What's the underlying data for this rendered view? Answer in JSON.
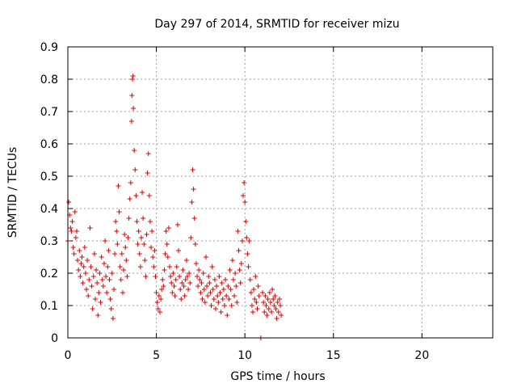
{
  "chart_data": {
    "type": "scatter",
    "title": "Day 297 of 2014, SRMTID for receiver mizu",
    "xlabel": "GPS time / hours",
    "ylabel": "SRMTID / TECUs",
    "xlim": [
      0,
      24
    ],
    "ylim": [
      0,
      0.9
    ],
    "x_ticks": [
      0,
      5,
      10,
      15,
      20
    ],
    "x_tick_labels": [
      "0",
      "5",
      "10",
      "15",
      "20"
    ],
    "y_ticks": [
      0,
      0.1,
      0.2,
      0.3,
      0.4,
      0.5,
      0.6,
      0.7,
      0.8,
      0.9
    ],
    "y_tick_labels": [
      "0",
      "0.1",
      "0.2",
      "0.3",
      "0.4",
      "0.5",
      "0.6",
      "0.7",
      "0.8",
      "0.9"
    ],
    "grid": true,
    "marker": "plus",
    "color": "#e00000",
    "series": [
      {
        "name": "SRMTID",
        "points": [
          [
            0.0,
            0.3
          ],
          [
            0.05,
            0.42
          ],
          [
            0.1,
            0.38
          ],
          [
            0.15,
            0.34
          ],
          [
            0.2,
            0.33
          ],
          [
            0.25,
            0.36
          ],
          [
            0.3,
            0.28
          ],
          [
            0.35,
            0.26
          ],
          [
            0.4,
            0.39
          ],
          [
            0.45,
            0.31
          ],
          [
            0.5,
            0.33
          ],
          [
            0.55,
            0.24
          ],
          [
            0.6,
            0.21
          ],
          [
            0.65,
            0.27
          ],
          [
            0.7,
            0.19
          ],
          [
            0.75,
            0.23
          ],
          [
            0.8,
            0.25
          ],
          [
            0.85,
            0.17
          ],
          [
            0.9,
            0.22
          ],
          [
            0.95,
            0.28
          ],
          [
            1.0,
            0.2
          ],
          [
            1.05,
            0.15
          ],
          [
            1.1,
            0.24
          ],
          [
            1.15,
            0.13
          ],
          [
            1.2,
            0.18
          ],
          [
            1.25,
            0.34
          ],
          [
            1.3,
            0.22
          ],
          [
            1.35,
            0.16
          ],
          [
            1.4,
            0.09
          ],
          [
            1.45,
            0.19
          ],
          [
            1.5,
            0.26
          ],
          [
            1.55,
            0.12
          ],
          [
            1.6,
            0.21
          ],
          [
            1.65,
            0.17
          ],
          [
            1.7,
            0.07
          ],
          [
            1.75,
            0.14
          ],
          [
            1.8,
            0.2
          ],
          [
            1.85,
            0.11
          ],
          [
            1.9,
            0.25
          ],
          [
            1.95,
            0.18
          ],
          [
            2.0,
            0.16
          ],
          [
            2.05,
            0.23
          ],
          [
            2.1,
            0.3
          ],
          [
            2.15,
            0.19
          ],
          [
            2.2,
            0.14
          ],
          [
            2.25,
            0.22
          ],
          [
            2.3,
            0.27
          ],
          [
            2.35,
            0.18
          ],
          [
            2.4,
            0.12
          ],
          [
            2.45,
            0.09
          ],
          [
            2.5,
            0.2
          ],
          [
            2.55,
            0.06
          ],
          [
            2.6,
            0.15
          ],
          [
            2.65,
            0.26
          ],
          [
            2.7,
            0.36
          ],
          [
            2.75,
            0.33
          ],
          [
            2.8,
            0.29
          ],
          [
            2.85,
            0.47
          ],
          [
            2.9,
            0.39
          ],
          [
            2.95,
            0.22
          ],
          [
            3.0,
            0.18
          ],
          [
            3.05,
            0.26
          ],
          [
            3.1,
            0.14
          ],
          [
            3.15,
            0.21
          ],
          [
            3.2,
            0.32
          ],
          [
            3.25,
            0.28
          ],
          [
            3.3,
            0.24
          ],
          [
            3.35,
            0.19
          ],
          [
            3.4,
            0.31
          ],
          [
            3.45,
            0.37
          ],
          [
            3.5,
            0.43
          ],
          [
            3.55,
            0.48
          ],
          [
            3.6,
            0.67
          ],
          [
            3.62,
            0.75
          ],
          [
            3.65,
            0.8
          ],
          [
            3.68,
            0.81
          ],
          [
            3.7,
            0.71
          ],
          [
            3.75,
            0.58
          ],
          [
            3.8,
            0.52
          ],
          [
            3.85,
            0.44
          ],
          [
            3.9,
            0.36
          ],
          [
            3.95,
            0.29
          ],
          [
            4.0,
            0.33
          ],
          [
            4.05,
            0.26
          ],
          [
            4.1,
            0.22
          ],
          [
            4.15,
            0.31
          ],
          [
            4.2,
            0.45
          ],
          [
            4.25,
            0.37
          ],
          [
            4.3,
            0.29
          ],
          [
            4.35,
            0.24
          ],
          [
            4.4,
            0.19
          ],
          [
            4.45,
            0.32
          ],
          [
            4.5,
            0.51
          ],
          [
            4.55,
            0.57
          ],
          [
            4.6,
            0.44
          ],
          [
            4.65,
            0.36
          ],
          [
            4.7,
            0.28
          ],
          [
            4.75,
            0.33
          ],
          [
            4.8,
            0.25
          ],
          [
            4.85,
            0.22
          ],
          [
            4.9,
            0.27
          ],
          [
            4.95,
            0.19
          ],
          [
            5.0,
            0.14
          ],
          [
            5.05,
            0.11
          ],
          [
            5.1,
            0.09
          ],
          [
            5.15,
            0.13
          ],
          [
            5.2,
            0.08
          ],
          [
            5.25,
            0.12
          ],
          [
            5.3,
            0.15
          ],
          [
            5.35,
            0.18
          ],
          [
            5.4,
            0.16
          ],
          [
            5.45,
            0.21
          ],
          [
            5.5,
            0.26
          ],
          [
            5.55,
            0.33
          ],
          [
            5.6,
            0.29
          ],
          [
            5.65,
            0.25
          ],
          [
            5.7,
            0.34
          ],
          [
            5.75,
            0.22
          ],
          [
            5.8,
            0.19
          ],
          [
            5.85,
            0.17
          ],
          [
            5.9,
            0.14
          ],
          [
            5.95,
            0.2
          ],
          [
            6.0,
            0.16
          ],
          [
            6.05,
            0.13
          ],
          [
            6.1,
            0.18
          ],
          [
            6.15,
            0.22
          ],
          [
            6.2,
            0.35
          ],
          [
            6.25,
            0.27
          ],
          [
            6.3,
            0.19
          ],
          [
            6.35,
            0.15
          ],
          [
            6.4,
            0.12
          ],
          [
            6.45,
            0.17
          ],
          [
            6.5,
            0.21
          ],
          [
            6.55,
            0.16
          ],
          [
            6.6,
            0.13
          ],
          [
            6.65,
            0.18
          ],
          [
            6.7,
            0.24
          ],
          [
            6.75,
            0.19
          ],
          [
            6.8,
            0.15
          ],
          [
            6.85,
            0.2
          ],
          [
            6.9,
            0.17
          ],
          [
            6.95,
            0.31
          ],
          [
            7.0,
            0.42
          ],
          [
            7.05,
            0.52
          ],
          [
            7.1,
            0.46
          ],
          [
            7.15,
            0.37
          ],
          [
            7.2,
            0.29
          ],
          [
            7.25,
            0.23
          ],
          [
            7.3,
            0.19
          ],
          [
            7.35,
            0.16
          ],
          [
            7.4,
            0.21
          ],
          [
            7.45,
            0.18
          ],
          [
            7.5,
            0.14
          ],
          [
            7.55,
            0.17
          ],
          [
            7.6,
            0.12
          ],
          [
            7.65,
            0.2
          ],
          [
            7.7,
            0.15
          ],
          [
            7.75,
            0.11
          ],
          [
            7.8,
            0.25
          ],
          [
            7.85,
            0.16
          ],
          [
            7.9,
            0.13
          ],
          [
            7.95,
            0.19
          ],
          [
            8.0,
            0.17
          ],
          [
            8.05,
            0.14
          ],
          [
            8.1,
            0.1
          ],
          [
            8.15,
            0.22
          ],
          [
            8.2,
            0.15
          ],
          [
            8.25,
            0.12
          ],
          [
            8.3,
            0.18
          ],
          [
            8.35,
            0.09
          ],
          [
            8.4,
            0.16
          ],
          [
            8.45,
            0.13
          ],
          [
            8.5,
            0.11
          ],
          [
            8.55,
            0.19
          ],
          [
            8.6,
            0.14
          ],
          [
            8.65,
            0.08
          ],
          [
            8.7,
            0.17
          ],
          [
            8.75,
            0.12
          ],
          [
            8.8,
            0.15
          ],
          [
            8.85,
            0.1
          ],
          [
            8.9,
            0.18
          ],
          [
            8.95,
            0.13
          ],
          [
            9.0,
            0.07
          ],
          [
            9.05,
            0.16
          ],
          [
            9.1,
            0.12
          ],
          [
            9.15,
            0.21
          ],
          [
            9.2,
            0.15
          ],
          [
            9.25,
            0.1
          ],
          [
            9.3,
            0.24
          ],
          [
            9.35,
            0.18
          ],
          [
            9.4,
            0.13
          ],
          [
            9.45,
            0.2
          ],
          [
            9.5,
            0.16
          ],
          [
            9.55,
            0.11
          ],
          [
            9.6,
            0.33
          ],
          [
            9.65,
            0.27
          ],
          [
            9.7,
            0.21
          ],
          [
            9.75,
            0.17
          ],
          [
            9.8,
            0.23
          ],
          [
            9.85,
            0.3
          ],
          [
            9.9,
            0.44
          ],
          [
            9.95,
            0.48
          ],
          [
            10.0,
            0.42
          ],
          [
            10.05,
            0.36
          ],
          [
            10.1,
            0.31
          ],
          [
            10.15,
            0.26
          ],
          [
            10.2,
            0.22
          ],
          [
            10.25,
            0.3
          ],
          [
            10.3,
            0.18
          ],
          [
            10.35,
            0.14
          ],
          [
            10.4,
            0.1
          ],
          [
            10.45,
            0.08
          ],
          [
            10.5,
            0.15
          ],
          [
            10.55,
            0.12
          ],
          [
            10.6,
            0.19
          ],
          [
            10.65,
            0.11
          ],
          [
            10.7,
            0.09
          ],
          [
            10.75,
            0.16
          ],
          [
            10.8,
            0.13
          ],
          [
            10.9,
            0.0
          ],
          [
            11.0,
            0.14
          ],
          [
            11.05,
            0.11
          ],
          [
            11.1,
            0.08
          ],
          [
            11.15,
            0.13
          ],
          [
            11.2,
            0.1
          ],
          [
            11.25,
            0.07
          ],
          [
            11.3,
            0.12
          ],
          [
            11.35,
            0.09
          ],
          [
            11.4,
            0.14
          ],
          [
            11.45,
            0.11
          ],
          [
            11.5,
            0.08
          ],
          [
            11.55,
            0.15
          ],
          [
            11.6,
            0.12
          ],
          [
            11.65,
            0.1
          ],
          [
            11.7,
            0.13
          ],
          [
            11.75,
            0.09
          ],
          [
            11.8,
            0.06
          ],
          [
            11.85,
            0.11
          ],
          [
            11.9,
            0.08
          ],
          [
            11.95,
            0.12
          ],
          [
            12.0,
            0.1
          ],
          [
            12.05,
            0.07
          ]
        ]
      }
    ]
  }
}
